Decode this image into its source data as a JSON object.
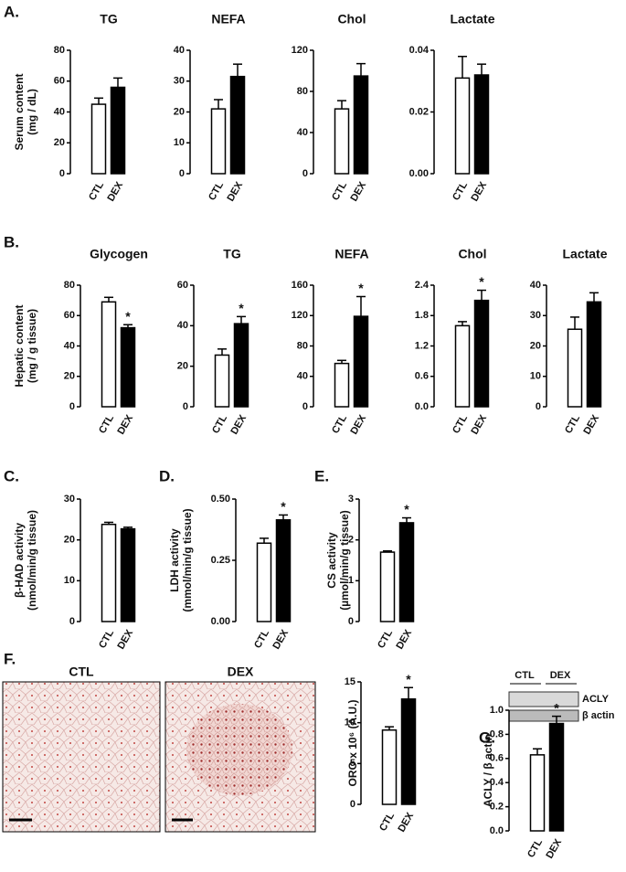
{
  "panel_labels": [
    "A.",
    "B.",
    "C.",
    "D.",
    "E.",
    "F.",
    "G."
  ],
  "chart_data": [
    {
      "type": "bar",
      "title": "TG",
      "y_label": [
        "Serum content",
        "(mg / dL)"
      ],
      "categories": [
        "CTL",
        "DEX"
      ],
      "values": [
        45,
        56
      ],
      "errors": [
        4,
        6
      ],
      "colors": [
        "#ffffff",
        "#000000"
      ],
      "ylim": [
        0,
        80
      ],
      "yticks": [
        0,
        20,
        40,
        60,
        80
      ]
    },
    {
      "type": "bar",
      "title": "NEFA",
      "categories": [
        "CTL",
        "DEX"
      ],
      "values": [
        21,
        31.5
      ],
      "errors": [
        3,
        4
      ],
      "colors": [
        "#ffffff",
        "#000000"
      ],
      "ylim": [
        0,
        40
      ],
      "yticks": [
        0,
        10,
        20,
        30,
        40
      ]
    },
    {
      "type": "bar",
      "title": "Chol",
      "categories": [
        "CTL",
        "DEX"
      ],
      "values": [
        63,
        95
      ],
      "errors": [
        8,
        12
      ],
      "colors": [
        "#ffffff",
        "#000000"
      ],
      "ylim": [
        0,
        120
      ],
      "yticks": [
        0,
        40,
        80,
        120
      ]
    },
    {
      "type": "bar",
      "title": "Lactate",
      "categories": [
        "CTL",
        "DEX"
      ],
      "values": [
        0.031,
        0.032
      ],
      "errors": [
        0.007,
        0.0035
      ],
      "colors": [
        "#ffffff",
        "#000000"
      ],
      "ylim": [
        0,
        0.04
      ],
      "yticks": [
        {
          "value": 0,
          "label": "0.00"
        },
        {
          "value": 0.02,
          "label": "0.02"
        },
        {
          "value": 0.04,
          "label": "0.04"
        }
      ]
    },
    {
      "type": "bar",
      "title": "Glycogen",
      "y_label": [
        "Hepatic content",
        "(mg / g tissue)"
      ],
      "categories": [
        "CTL",
        "DEX"
      ],
      "values": [
        69,
        52
      ],
      "errors": [
        3,
        2
      ],
      "colors": [
        "#ffffff",
        "#000000"
      ],
      "ylim": [
        0,
        80
      ],
      "yticks": [
        0,
        20,
        40,
        60,
        80
      ],
      "annotations": [
        {
          "text": "*",
          "x": "DEX"
        }
      ]
    },
    {
      "type": "bar",
      "title": "TG",
      "categories": [
        "CTL",
        "DEX"
      ],
      "values": [
        25.5,
        41
      ],
      "errors": [
        3,
        3.5
      ],
      "colors": [
        "#ffffff",
        "#000000"
      ],
      "ylim": [
        0,
        60
      ],
      "yticks": [
        0,
        20,
        40,
        60
      ],
      "annotations": [
        {
          "text": "*",
          "x": "DEX"
        }
      ]
    },
    {
      "type": "bar",
      "title": "NEFA",
      "categories": [
        "CTL",
        "DEX"
      ],
      "values": [
        57,
        119
      ],
      "errors": [
        4,
        26
      ],
      "colors": [
        "#ffffff",
        "#000000"
      ],
      "ylim": [
        0,
        160
      ],
      "yticks": [
        0,
        40,
        80,
        120,
        160
      ],
      "annotations": [
        {
          "text": "*",
          "x": "DEX"
        }
      ]
    },
    {
      "type": "bar",
      "title": "Chol",
      "categories": [
        "CTL",
        "DEX"
      ],
      "values": [
        1.6,
        2.1
      ],
      "errors": [
        0.08,
        0.2
      ],
      "colors": [
        "#ffffff",
        "#000000"
      ],
      "ylim": [
        0,
        2.4
      ],
      "yticks": [
        {
          "value": 0,
          "label": "0.0"
        },
        0.6,
        1.2,
        1.8,
        2.4
      ],
      "annotations": [
        {
          "text": "*",
          "x": "DEX"
        }
      ]
    },
    {
      "type": "bar",
      "title": "Lactate",
      "categories": [
        "CTL",
        "DEX"
      ],
      "values": [
        25.5,
        34.5
      ],
      "errors": [
        4,
        3
      ],
      "colors": [
        "#ffffff",
        "#000000"
      ],
      "ylim": [
        0,
        40
      ],
      "yticks": [
        0,
        10,
        20,
        30,
        40
      ]
    },
    {
      "type": "bar",
      "y_label": [
        "β-HAD activity",
        "(nmol/min/g tissue)"
      ],
      "categories": [
        "CTL",
        "DEX"
      ],
      "values": [
        23.8,
        22.7
      ],
      "errors": [
        0.5,
        0.4
      ],
      "colors": [
        "#ffffff",
        "#000000"
      ],
      "ylim": [
        0,
        30
      ],
      "yticks": [
        0,
        10,
        20,
        30
      ]
    },
    {
      "type": "bar",
      "y_label": [
        "LDH activity",
        "(mmol/min/g tissue)"
      ],
      "categories": [
        "CTL",
        "DEX"
      ],
      "values": [
        0.32,
        0.415
      ],
      "errors": [
        0.02,
        0.02
      ],
      "colors": [
        "#ffffff",
        "#000000"
      ],
      "ylim": [
        0,
        0.5
      ],
      "yticks": [
        {
          "value": 0,
          "label": "0.00"
        },
        0.25,
        {
          "value": 0.5,
          "label": "0.50"
        }
      ],
      "annotations": [
        {
          "text": "*",
          "x": "DEX"
        }
      ]
    },
    {
      "type": "bar",
      "y_label": [
        "CS activity",
        "(µmol/min/g tissue)"
      ],
      "categories": [
        "CTL",
        "DEX"
      ],
      "values": [
        1.7,
        2.42
      ],
      "errors": [
        0.03,
        0.12
      ],
      "colors": [
        "#ffffff",
        "#000000"
      ],
      "ylim": [
        0,
        3
      ],
      "yticks": [
        0,
        1,
        2,
        3
      ],
      "annotations": [
        {
          "text": "*",
          "x": "DEX"
        }
      ]
    },
    {
      "type": "bar",
      "y_label": [
        "ORO x 10⁶ (A.U.)"
      ],
      "categories": [
        "CTL",
        "DEX"
      ],
      "values": [
        9.1,
        12.9
      ],
      "errors": [
        0.4,
        1.4
      ],
      "colors": [
        "#ffffff",
        "#000000"
      ],
      "ylim": [
        0,
        15
      ],
      "yticks": [
        0,
        5,
        10,
        15
      ],
      "annotations": [
        {
          "text": "*",
          "x": "DEX"
        }
      ]
    },
    {
      "type": "bar",
      "y_label": [
        "ACLY / β actin"
      ],
      "categories": [
        "CTL",
        "DEX"
      ],
      "values": [
        0.63,
        0.89
      ],
      "errors": [
        0.05,
        0.06
      ],
      "colors": [
        "#ffffff",
        "#000000"
      ],
      "ylim": [
        0,
        1
      ],
      "yticks": [
        {
          "value": 0,
          "label": "0.0"
        },
        0.2,
        0.4,
        0.6,
        0.8,
        {
          "value": 1,
          "label": "1.0"
        }
      ],
      "annotations": [
        {
          "text": "*",
          "x": "DEX"
        }
      ]
    }
  ],
  "micrographs": {
    "titles": [
      "CTL",
      "DEX"
    ]
  },
  "blot": {
    "groups": [
      "CTL",
      "DEX"
    ],
    "bands": [
      "ACLY",
      "β actin"
    ]
  }
}
